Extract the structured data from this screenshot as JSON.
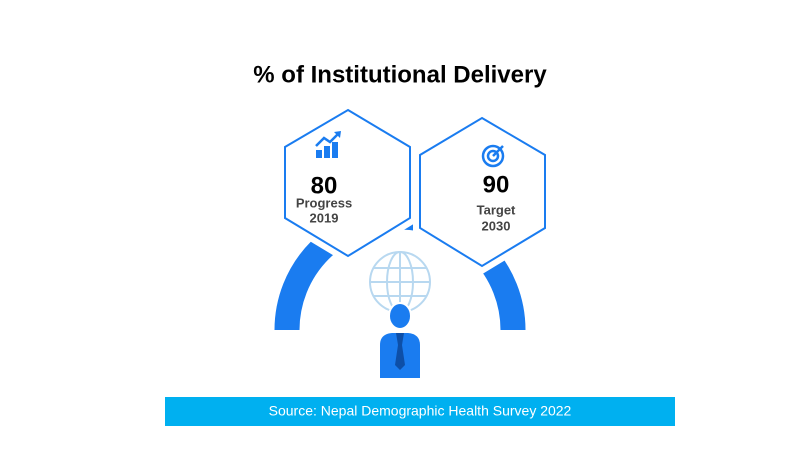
{
  "title": "% of Institutional Delivery",
  "items": [
    {
      "value": "80",
      "label": "Progress",
      "year": "2019"
    },
    {
      "value": "90",
      "label": "Target",
      "year": "2030"
    }
  ],
  "source": "Source: Nepal Demographic Health Survey 2022"
}
